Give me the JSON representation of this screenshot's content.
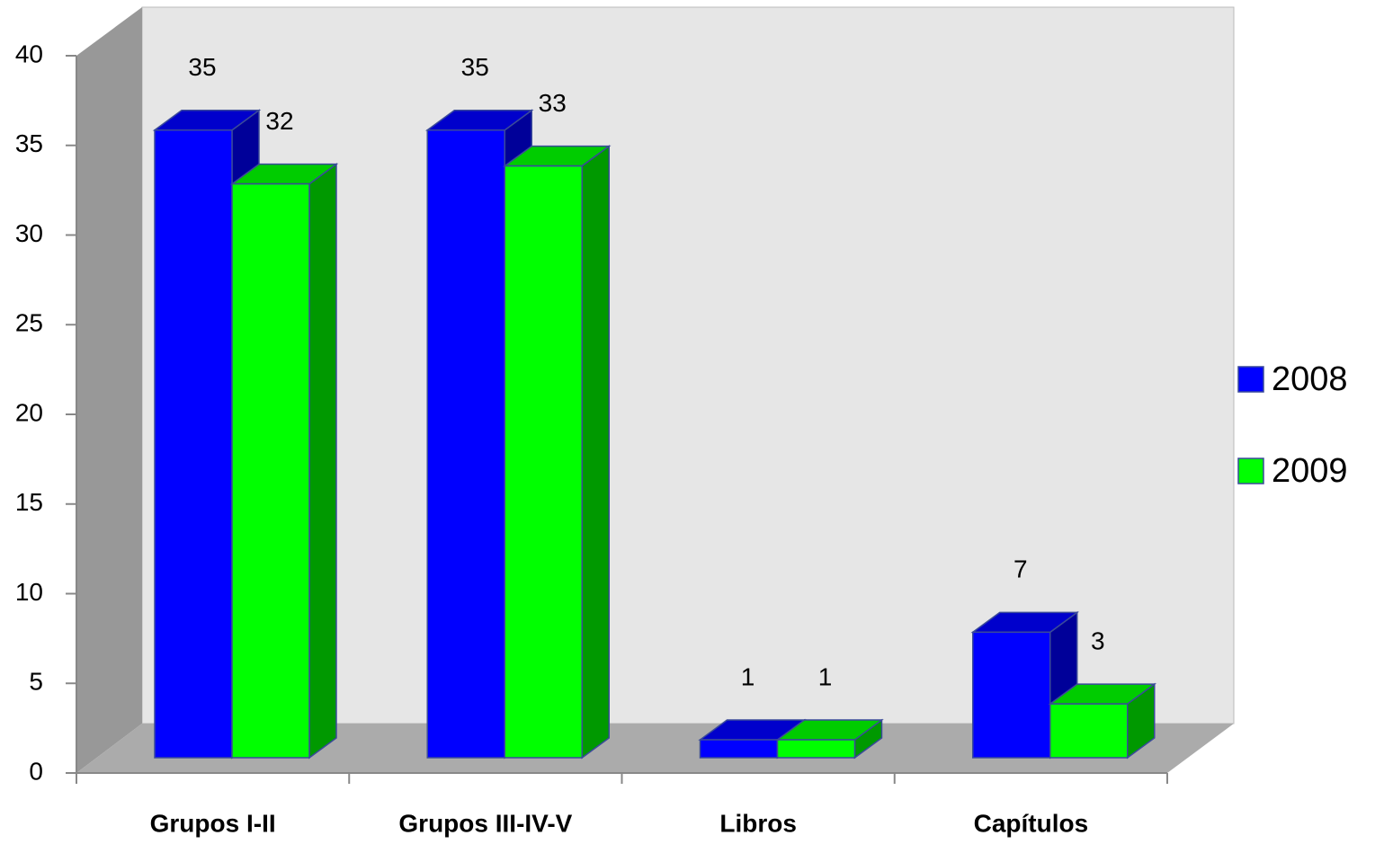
{
  "chart_data": {
    "type": "bar3d",
    "categories": [
      "Grupos I-II",
      "Grupos III-IV-V",
      "Libros",
      "Capítulos"
    ],
    "series": [
      {
        "name": "2008",
        "color": "#0000ff",
        "values": [
          35,
          35,
          1,
          7
        ]
      },
      {
        "name": "2009",
        "color": "#00ff00",
        "values": [
          32,
          33,
          1,
          3
        ]
      }
    ],
    "ylim": [
      0,
      40
    ],
    "yticks": [
      0,
      5,
      10,
      15,
      20,
      25,
      30,
      35,
      40
    ],
    "legend": "right"
  }
}
